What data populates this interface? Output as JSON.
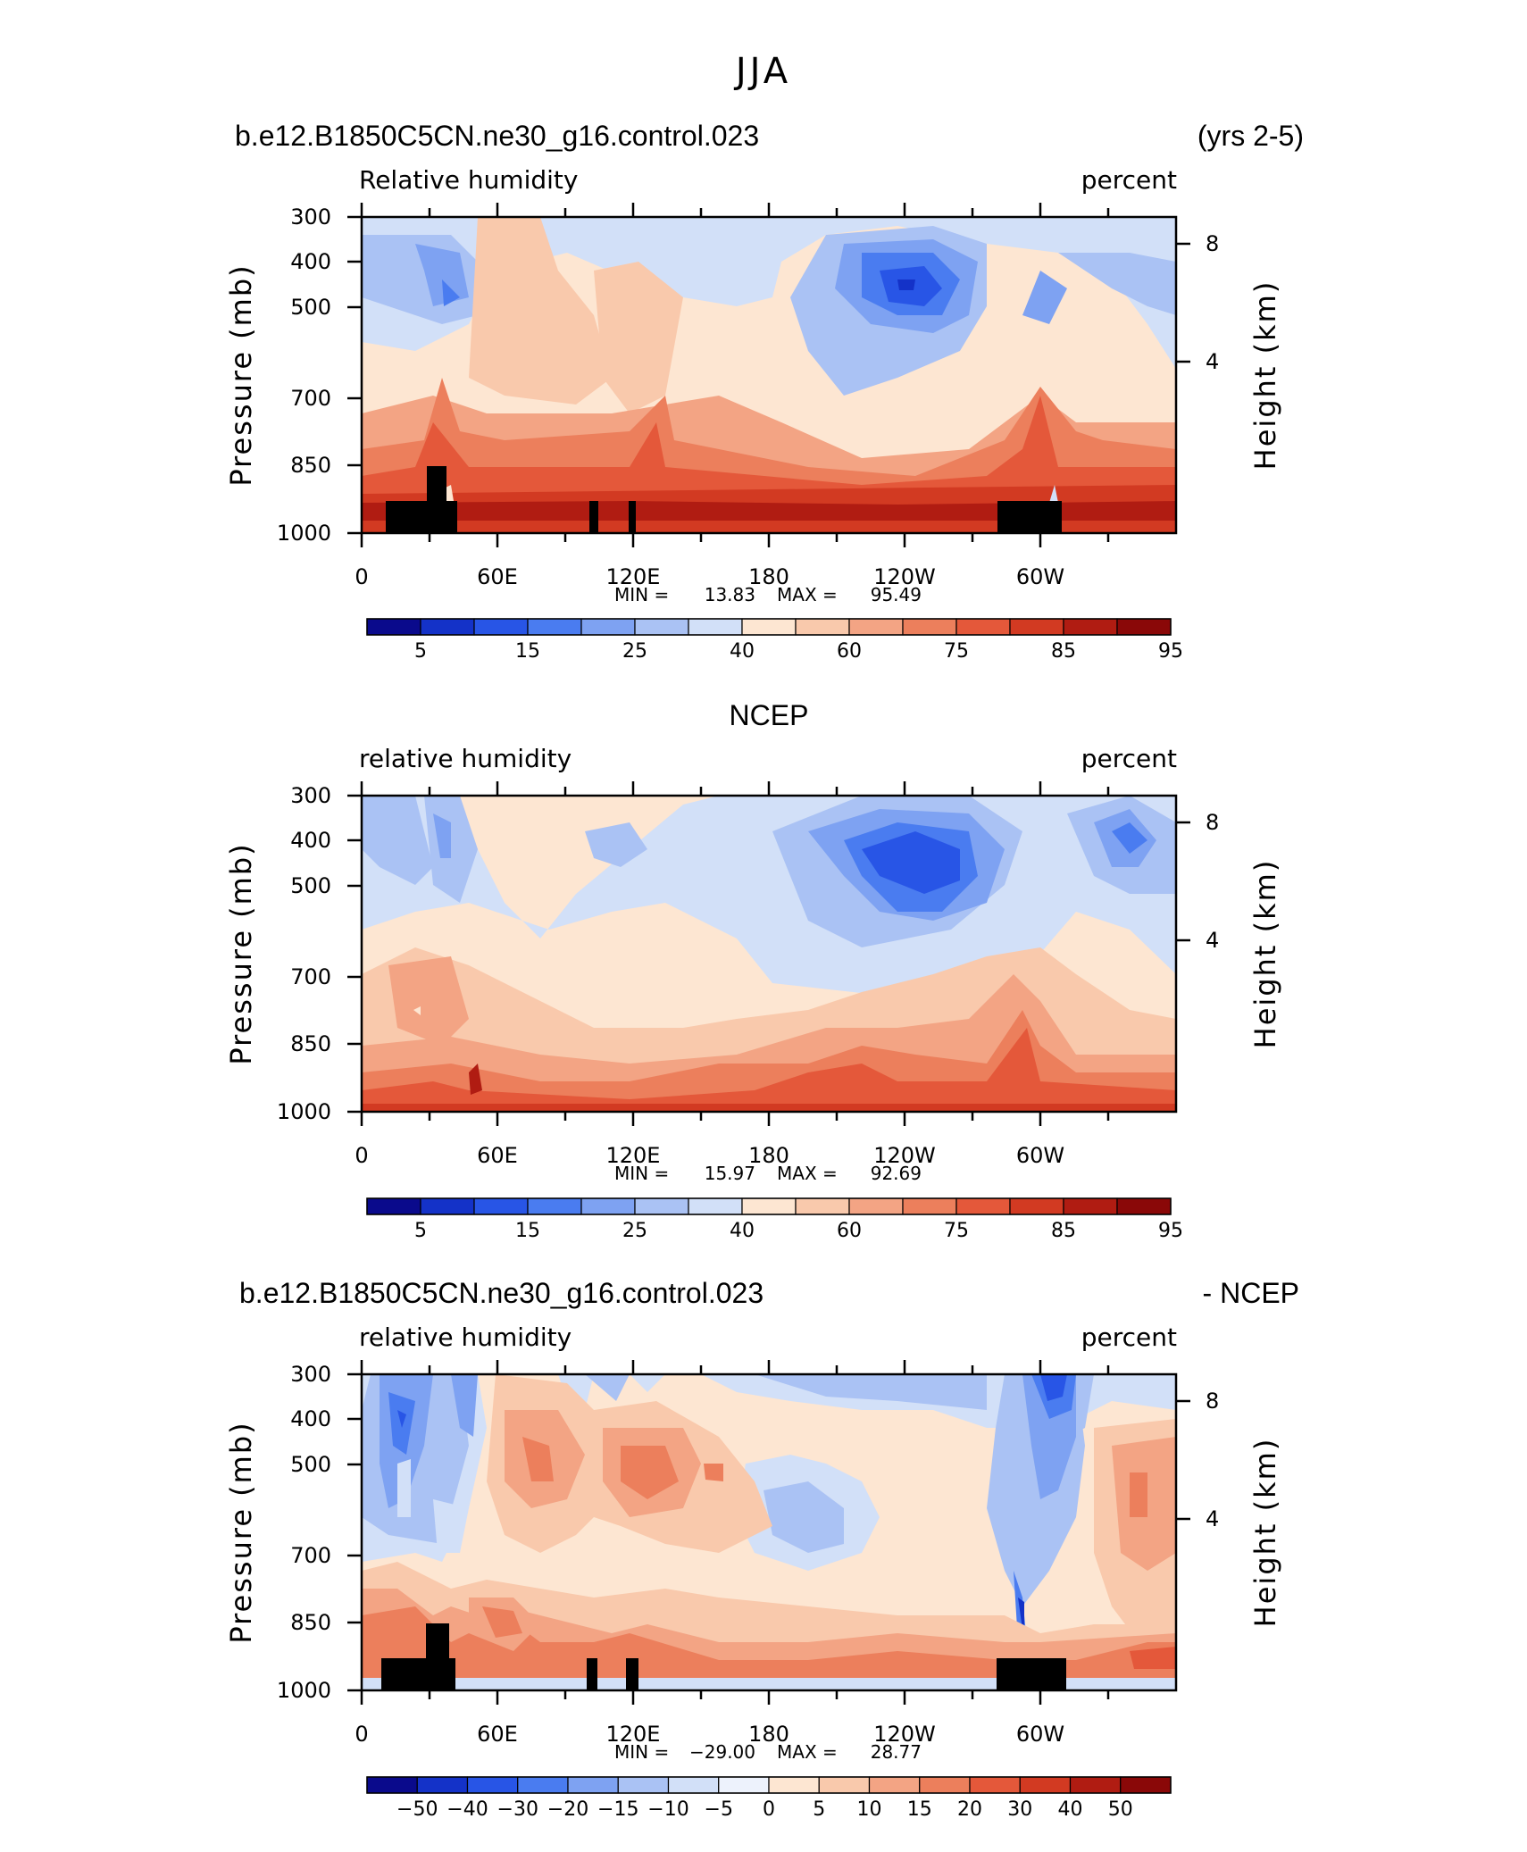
{
  "season": "JJA",
  "chart_data": [
    {
      "type": "heatmap",
      "header_left": "b.e12.B1850C5CN.ne30_g16.control.023",
      "header_right": "(yrs 2-5)",
      "title_left": "Relative humidity",
      "title_right": "percent",
      "xlabel": "",
      "ylabel": "Pressure (mb)",
      "ylabel_right": "Height (km)",
      "x_ticks": [
        "0",
        "60E",
        "120E",
        "180",
        "120W",
        "60W"
      ],
      "y_ticks": [
        "300",
        "400",
        "500",
        "700",
        "850",
        "1000"
      ],
      "height_ticks": [
        "8",
        "4"
      ],
      "ylim": [
        1000,
        300
      ],
      "min_label": "MIN =",
      "min_value": "13.83",
      "max_label": "MAX =",
      "max_value": "95.49",
      "colorbar_labels": [
        "5",
        "15",
        "25",
        "40",
        "60",
        "75",
        "85",
        "95"
      ],
      "colorbar_colors": [
        "#0a0a8c",
        "#1432c8",
        "#2855e6",
        "#4a7cf0",
        "#7ea2f2",
        "#aac2f4",
        "#d2e0f8",
        "#fde6d2",
        "#f9c9ac",
        "#f3a484",
        "#ec7f5c",
        "#e4583a",
        "#d23a22",
        "#b01c12",
        "#8a0808"
      ],
      "terrain": true
    },
    {
      "type": "heatmap",
      "header_center": "NCEP",
      "title_left": "relative humidity",
      "title_right": "percent",
      "xlabel": "",
      "ylabel": "Pressure (mb)",
      "ylabel_right": "Height (km)",
      "x_ticks": [
        "0",
        "60E",
        "120E",
        "180",
        "120W",
        "60W"
      ],
      "y_ticks": [
        "300",
        "400",
        "500",
        "700",
        "850",
        "1000"
      ],
      "height_ticks": [
        "8",
        "4"
      ],
      "ylim": [
        1000,
        300
      ],
      "min_label": "MIN =",
      "min_value": "15.97",
      "max_label": "MAX =",
      "max_value": "92.69",
      "colorbar_labels": [
        "5",
        "15",
        "25",
        "40",
        "60",
        "75",
        "85",
        "95"
      ],
      "colorbar_colors": [
        "#0a0a8c",
        "#1432c8",
        "#2855e6",
        "#4a7cf0",
        "#7ea2f2",
        "#aac2f4",
        "#d2e0f8",
        "#fde6d2",
        "#f9c9ac",
        "#f3a484",
        "#ec7f5c",
        "#e4583a",
        "#d23a22",
        "#b01c12",
        "#8a0808"
      ],
      "terrain": false
    },
    {
      "type": "heatmap",
      "header_left": "b.e12.B1850C5CN.ne30_g16.control.023",
      "header_right": "- NCEP",
      "title_left": "relative humidity",
      "title_right": "percent",
      "xlabel": "",
      "ylabel": "Pressure (mb)",
      "ylabel_right": "Height (km)",
      "x_ticks": [
        "0",
        "60E",
        "120E",
        "180",
        "120W",
        "60W"
      ],
      "y_ticks": [
        "300",
        "400",
        "500",
        "700",
        "850",
        "1000"
      ],
      "height_ticks": [
        "8",
        "4"
      ],
      "ylim": [
        1000,
        300
      ],
      "min_label": "MIN =",
      "min_value": "−29.00",
      "max_label": "MAX =",
      "max_value": "28.77",
      "colorbar_labels": [
        "−50",
        "−40",
        "−30",
        "−20",
        "−15",
        "−10",
        "−5",
        "0",
        "5",
        "10",
        "15",
        "20",
        "30",
        "40",
        "50"
      ],
      "colorbar_colors": [
        "#0a0a8c",
        "#1432c8",
        "#2855e6",
        "#4a7cf0",
        "#7ea2f2",
        "#aac2f4",
        "#d2e0f8",
        "#edf2fc",
        "#fde6d2",
        "#f9c9ac",
        "#f3a484",
        "#ec7f5c",
        "#e4583a",
        "#d23a22",
        "#b01c12",
        "#8a0808"
      ],
      "terrain": true
    }
  ]
}
